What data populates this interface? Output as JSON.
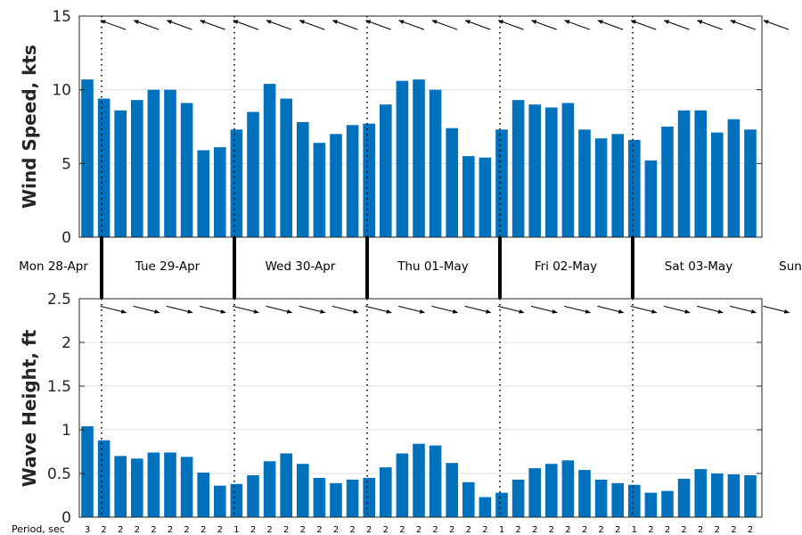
{
  "chart_data": [
    {
      "type": "bar",
      "ylabel": "Wind Speed, kts",
      "ylim": [
        0,
        15
      ],
      "yticks": [
        "0",
        "5",
        "10",
        "15"
      ],
      "values": [
        10.7,
        9.4,
        8.6,
        9.3,
        10.0,
        10.0,
        9.1,
        5.9,
        6.1,
        7.3,
        8.5,
        10.4,
        9.4,
        7.8,
        6.4,
        7.0,
        7.6,
        7.7,
        9.0,
        10.6,
        10.7,
        10.0,
        7.4,
        5.5,
        5.4,
        7.3,
        9.3,
        9.0,
        8.8,
        9.1,
        7.3,
        6.7,
        7.0,
        6.6,
        5.2,
        7.5,
        8.6,
        8.6,
        7.1,
        8.0,
        7.3
      ],
      "direction_arrows": "present, pointing roughly west-northwest (from the east-southeast)",
      "color": "#0072bd",
      "grid": true
    },
    {
      "type": "bar",
      "ylabel": "Wave Height, ft",
      "ylim": [
        0,
        2.5
      ],
      "yticks": [
        "0",
        "0.5",
        "1",
        "1.5",
        "2",
        "2.5"
      ],
      "values": [
        1.04,
        0.88,
        0.7,
        0.67,
        0.74,
        0.74,
        0.69,
        0.51,
        0.36,
        0.38,
        0.48,
        0.64,
        0.73,
        0.61,
        0.45,
        0.39,
        0.43,
        0.45,
        0.57,
        0.73,
        0.84,
        0.82,
        0.62,
        0.4,
        0.23,
        0.28,
        0.43,
        0.56,
        0.61,
        0.65,
        0.54,
        0.43,
        0.39,
        0.37,
        0.28,
        0.3,
        0.44,
        0.55,
        0.5,
        0.49,
        0.48
      ],
      "direction_arrows": "present, pointing roughly east-southeast",
      "color": "#0072bd",
      "grid": true
    }
  ],
  "days": [
    "Mon 28-Apr",
    "Tue 29-Apr",
    "Wed 30-Apr",
    "Thu 01-May",
    "Fri 02-May",
    "Sat 03-May",
    "Sun"
  ],
  "period": {
    "label": "Period, sec",
    "values": [
      "3",
      "2",
      "2",
      "2",
      "2",
      "2",
      "2",
      "2",
      "2",
      "1",
      "2",
      "2",
      "2",
      "2",
      "2",
      "2",
      "2",
      "2",
      "2",
      "2",
      "2",
      "2",
      "2",
      "2",
      "2",
      "1",
      "2",
      "2",
      "2",
      "2",
      "2",
      "2",
      "2",
      "1",
      "2",
      "2",
      "2",
      "2",
      "2",
      "2",
      "2"
    ]
  }
}
